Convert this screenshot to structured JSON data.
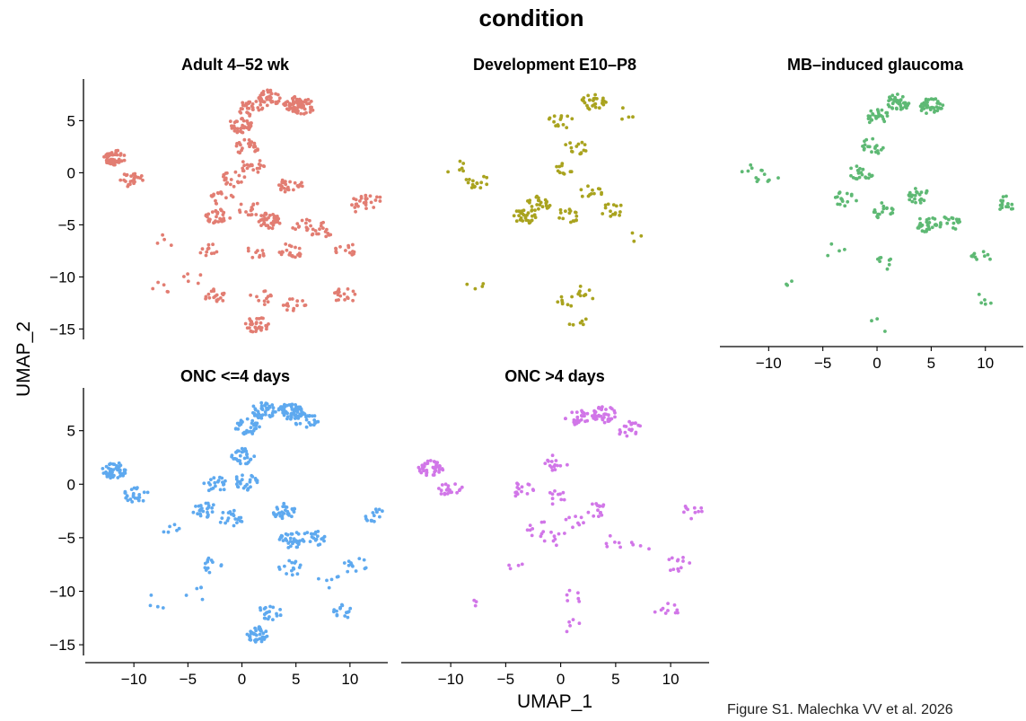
{
  "figure": {
    "title": "condition",
    "caption": "Figure S1. Malechka VV et al. 2026"
  },
  "chart_data": {
    "type": "scatter",
    "title": "condition",
    "xlabel": "UMAP_1",
    "ylabel": "UMAP_2",
    "xlim": [
      -14.5,
      13.5
    ],
    "ylim": [
      -16,
      9
    ],
    "xticks": [
      -10,
      -5,
      0,
      5,
      10
    ],
    "yticks": [
      -15,
      -10,
      -5,
      0,
      5
    ],
    "grid": false,
    "legend": "none",
    "panels": [
      {
        "title": "Adult 4–52 wk",
        "color": "#E27D72",
        "clusters": [
          {
            "x": 5.0,
            "y": 6.6,
            "n": 40
          },
          {
            "x": 5.6,
            "y": 6.4,
            "n": 35
          },
          {
            "x": 2.5,
            "y": 7.2,
            "n": 40
          },
          {
            "x": 0.8,
            "y": 6.2,
            "n": 30
          },
          {
            "x": -0.2,
            "y": 4.6,
            "n": 35
          },
          {
            "x": 0.5,
            "y": 2.5,
            "n": 25
          },
          {
            "x": 1.0,
            "y": 0.6,
            "n": 20
          },
          {
            "x": -0.8,
            "y": -0.6,
            "n": 20
          },
          {
            "x": -1.8,
            "y": -2.5,
            "n": 15
          },
          {
            "x": -2.2,
            "y": -4.2,
            "n": 30
          },
          {
            "x": 0.8,
            "y": -3.4,
            "n": 15
          },
          {
            "x": 2.6,
            "y": -4.6,
            "n": 40
          },
          {
            "x": 4.5,
            "y": -1.2,
            "n": 25
          },
          {
            "x": 5.4,
            "y": -5.0,
            "n": 12
          },
          {
            "x": 7.3,
            "y": -5.5,
            "n": 18
          },
          {
            "x": 4.6,
            "y": -7.5,
            "n": 20
          },
          {
            "x": -3.4,
            "y": -7.4,
            "n": 12
          },
          {
            "x": 1.2,
            "y": -7.6,
            "n": 10
          },
          {
            "x": -11.8,
            "y": 1.4,
            "n": 45
          },
          {
            "x": -10.2,
            "y": -0.6,
            "n": 25
          },
          {
            "x": 1.4,
            "y": -14.6,
            "n": 35
          },
          {
            "x": -2.4,
            "y": -11.8,
            "n": 18
          },
          {
            "x": 1.7,
            "y": -12.0,
            "n": 12
          },
          {
            "x": 4.8,
            "y": -12.8,
            "n": 14
          },
          {
            "x": 9.5,
            "y": -11.8,
            "n": 18
          },
          {
            "x": 9.8,
            "y": -7.4,
            "n": 14
          },
          {
            "x": 11.9,
            "y": -2.8,
            "n": 14
          },
          {
            "x": 10.7,
            "y": -3.0,
            "n": 12
          },
          {
            "x": -7.8,
            "y": -11.2,
            "n": 5
          },
          {
            "x": -6.9,
            "y": -6.5,
            "n": 4
          },
          {
            "x": -4.5,
            "y": -10.0,
            "n": 5
          }
        ]
      },
      {
        "title": "Development E10–P8",
        "color": "#A9A31F",
        "clusters": [
          {
            "x": 3.0,
            "y": 6.8,
            "n": 28
          },
          {
            "x": 0.0,
            "y": 5.0,
            "n": 14
          },
          {
            "x": 1.5,
            "y": 2.5,
            "n": 14
          },
          {
            "x": 0.2,
            "y": 0.3,
            "n": 10
          },
          {
            "x": -2.0,
            "y": -3.0,
            "n": 25
          },
          {
            "x": -3.2,
            "y": -4.2,
            "n": 30
          },
          {
            "x": -7.7,
            "y": -0.8,
            "n": 15
          },
          {
            "x": -9.5,
            "y": 0.5,
            "n": 6
          },
          {
            "x": 0.8,
            "y": -4.0,
            "n": 16
          },
          {
            "x": 2.8,
            "y": -2.0,
            "n": 12
          },
          {
            "x": 4.7,
            "y": -3.5,
            "n": 14
          },
          {
            "x": 2.5,
            "y": -11.5,
            "n": 10
          },
          {
            "x": 0.8,
            "y": -12.2,
            "n": 8
          },
          {
            "x": 1.8,
            "y": -14.5,
            "n": 6
          },
          {
            "x": -8.0,
            "y": -11.0,
            "n": 4
          },
          {
            "x": 5.5,
            "y": 5.5,
            "n": 4
          },
          {
            "x": 7.0,
            "y": -6.0,
            "n": 3
          }
        ]
      },
      {
        "title": "MB–induced glaucoma",
        "color": "#5EB974",
        "clusters": [
          {
            "x": 2.0,
            "y": 6.8,
            "n": 40
          },
          {
            "x": 5.0,
            "y": 6.4,
            "n": 35
          },
          {
            "x": 0.0,
            "y": 5.4,
            "n": 25
          },
          {
            "x": -0.5,
            "y": 2.5,
            "n": 18
          },
          {
            "x": -1.5,
            "y": 0.0,
            "n": 20
          },
          {
            "x": -3.0,
            "y": -2.5,
            "n": 15
          },
          {
            "x": 0.5,
            "y": -3.6,
            "n": 18
          },
          {
            "x": 3.8,
            "y": -2.2,
            "n": 25
          },
          {
            "x": 4.6,
            "y": -5.0,
            "n": 30
          },
          {
            "x": 6.8,
            "y": -4.8,
            "n": 18
          },
          {
            "x": 12.0,
            "y": -3.0,
            "n": 15
          },
          {
            "x": 9.8,
            "y": -8.0,
            "n": 10
          },
          {
            "x": 1.0,
            "y": -8.5,
            "n": 8
          },
          {
            "x": -11.5,
            "y": 0.0,
            "n": 8
          },
          {
            "x": -10.0,
            "y": -0.8,
            "n": 6
          },
          {
            "x": 9.6,
            "y": -12.2,
            "n": 5
          },
          {
            "x": 0.5,
            "y": -14.5,
            "n": 3
          },
          {
            "x": -8.0,
            "y": -11.0,
            "n": 3
          },
          {
            "x": -4.0,
            "y": -7.5,
            "n": 4
          }
        ]
      },
      {
        "title": "ONC <=4 days",
        "color": "#5EA9EF",
        "clusters": [
          {
            "x": 4.5,
            "y": 6.8,
            "n": 55
          },
          {
            "x": 2.0,
            "y": 6.9,
            "n": 45
          },
          {
            "x": 6.0,
            "y": 6.0,
            "n": 30
          },
          {
            "x": 0.5,
            "y": 5.4,
            "n": 35
          },
          {
            "x": 0.0,
            "y": 2.6,
            "n": 30
          },
          {
            "x": 0.3,
            "y": 0.2,
            "n": 25
          },
          {
            "x": -2.5,
            "y": 0.0,
            "n": 20
          },
          {
            "x": -3.5,
            "y": -2.4,
            "n": 25
          },
          {
            "x": -1.0,
            "y": -3.2,
            "n": 20
          },
          {
            "x": 3.8,
            "y": -2.5,
            "n": 30
          },
          {
            "x": 4.6,
            "y": -5.2,
            "n": 35
          },
          {
            "x": 6.6,
            "y": -5.0,
            "n": 20
          },
          {
            "x": 4.5,
            "y": -7.8,
            "n": 15
          },
          {
            "x": -11.8,
            "y": 1.3,
            "n": 50
          },
          {
            "x": -9.8,
            "y": -1.0,
            "n": 25
          },
          {
            "x": 1.5,
            "y": -14.0,
            "n": 40
          },
          {
            "x": 2.5,
            "y": -12.0,
            "n": 20
          },
          {
            "x": 9.3,
            "y": -11.8,
            "n": 15
          },
          {
            "x": 12.0,
            "y": -2.8,
            "n": 15
          },
          {
            "x": 10.5,
            "y": -7.6,
            "n": 12
          },
          {
            "x": -3.0,
            "y": -7.5,
            "n": 12
          },
          {
            "x": -6.5,
            "y": -4.5,
            "n": 6
          },
          {
            "x": 8.0,
            "y": -9.0,
            "n": 6
          },
          {
            "x": -8.0,
            "y": -11.0,
            "n": 4
          },
          {
            "x": -4.2,
            "y": -10.2,
            "n": 5
          }
        ]
      },
      {
        "title": "ONC >4 days",
        "color": "#D176E8",
        "clusters": [
          {
            "x": 4.0,
            "y": 6.5,
            "n": 40
          },
          {
            "x": 1.5,
            "y": 6.2,
            "n": 30
          },
          {
            "x": 6.2,
            "y": 5.2,
            "n": 20
          },
          {
            "x": -0.5,
            "y": 2.0,
            "n": 15
          },
          {
            "x": -3.6,
            "y": -0.5,
            "n": 15
          },
          {
            "x": -0.5,
            "y": -1.2,
            "n": 10
          },
          {
            "x": 3.5,
            "y": -2.3,
            "n": 15
          },
          {
            "x": 1.0,
            "y": -3.5,
            "n": 8
          },
          {
            "x": -2.0,
            "y": -4.2,
            "n": 10
          },
          {
            "x": -0.5,
            "y": -5.0,
            "n": 8
          },
          {
            "x": 4.5,
            "y": -5.5,
            "n": 6
          },
          {
            "x": 7.5,
            "y": -5.5,
            "n": 4
          },
          {
            "x": -11.8,
            "y": 1.5,
            "n": 40
          },
          {
            "x": -10.0,
            "y": -0.5,
            "n": 20
          },
          {
            "x": 10.7,
            "y": -7.5,
            "n": 12
          },
          {
            "x": 9.6,
            "y": -11.8,
            "n": 10
          },
          {
            "x": 12.0,
            "y": -2.5,
            "n": 10
          },
          {
            "x": 1.5,
            "y": -10.5,
            "n": 6
          },
          {
            "x": 1.2,
            "y": -13.3,
            "n": 5
          },
          {
            "x": -4.5,
            "y": -7.5,
            "n": 4
          },
          {
            "x": -8.0,
            "y": -11.0,
            "n": 3
          }
        ]
      }
    ]
  }
}
